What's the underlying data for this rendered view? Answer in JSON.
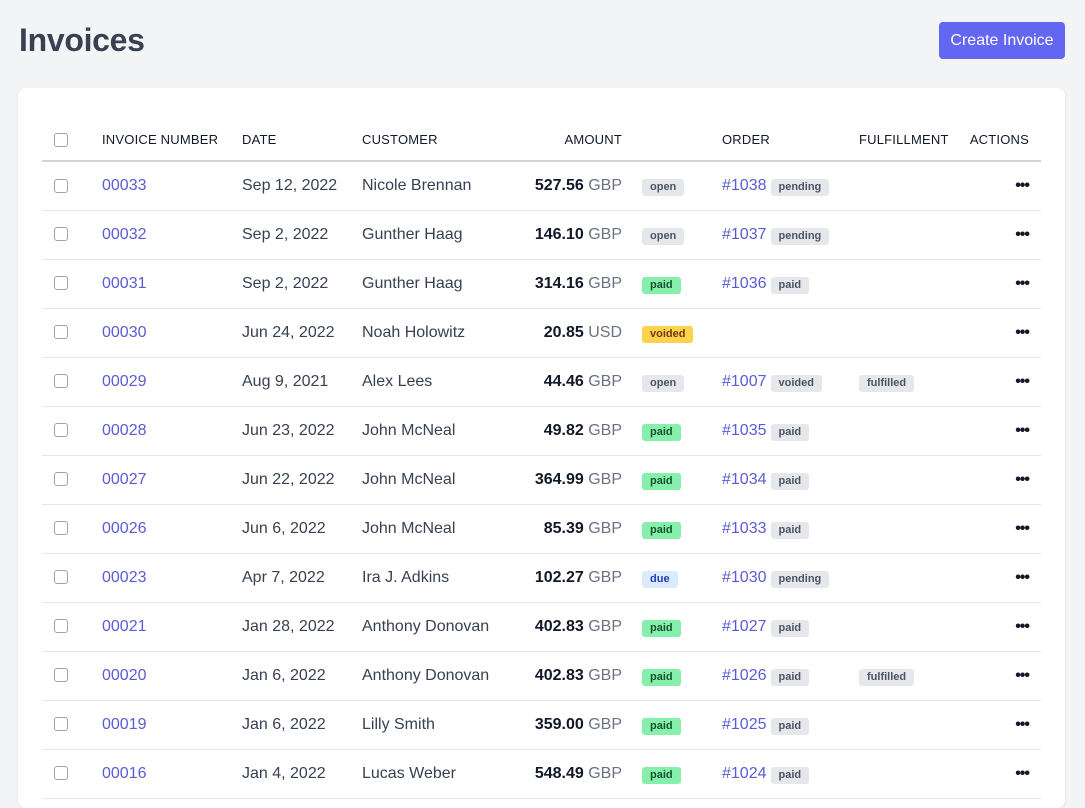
{
  "header": {
    "title": "Invoices",
    "create_button": "Create Invoice"
  },
  "colors": {
    "accent": "#6366f1",
    "link": "#5b5bd6",
    "paid": "#86efac",
    "voided": "#fcd34d",
    "due": "#dbeafe",
    "neutral_badge": "#e5e7eb"
  },
  "table": {
    "columns": [
      "Invoice Number",
      "Date",
      "Customer",
      "Amount",
      "",
      "Order",
      "Fulfillment",
      "Actions"
    ],
    "actions_icon": "more-horizontal-icon",
    "rows": [
      {
        "number": "00033",
        "date": "Sep 12, 2022",
        "customer": "Nicole Brennan",
        "amount": "527.56",
        "currency": "GBP",
        "status": "open",
        "order": "#1038",
        "order_status": "pending",
        "fulfillment": ""
      },
      {
        "number": "00032",
        "date": "Sep 2, 2022",
        "customer": "Gunther Haag",
        "amount": "146.10",
        "currency": "GBP",
        "status": "open",
        "order": "#1037",
        "order_status": "pending",
        "fulfillment": ""
      },
      {
        "number": "00031",
        "date": "Sep 2, 2022",
        "customer": "Gunther Haag",
        "amount": "314.16",
        "currency": "GBP",
        "status": "paid",
        "order": "#1036",
        "order_status": "paid",
        "fulfillment": ""
      },
      {
        "number": "00030",
        "date": "Jun 24, 2022",
        "customer": "Noah Holowitz",
        "amount": "20.85",
        "currency": "USD",
        "status": "voided",
        "order": "",
        "order_status": "",
        "fulfillment": ""
      },
      {
        "number": "00029",
        "date": "Aug 9, 2021",
        "customer": "Alex Lees",
        "amount": "44.46",
        "currency": "GBP",
        "status": "open",
        "order": "#1007",
        "order_status": "voided",
        "fulfillment": "fulfilled"
      },
      {
        "number": "00028",
        "date": "Jun 23, 2022",
        "customer": "John McNeal",
        "amount": "49.82",
        "currency": "GBP",
        "status": "paid",
        "order": "#1035",
        "order_status": "paid",
        "fulfillment": ""
      },
      {
        "number": "00027",
        "date": "Jun 22, 2022",
        "customer": "John McNeal",
        "amount": "364.99",
        "currency": "GBP",
        "status": "paid",
        "order": "#1034",
        "order_status": "paid",
        "fulfillment": ""
      },
      {
        "number": "00026",
        "date": "Jun 6, 2022",
        "customer": "John McNeal",
        "amount": "85.39",
        "currency": "GBP",
        "status": "paid",
        "order": "#1033",
        "order_status": "paid",
        "fulfillment": ""
      },
      {
        "number": "00023",
        "date": "Apr 7, 2022",
        "customer": "Ira J. Adkins",
        "amount": "102.27",
        "currency": "GBP",
        "status": "due",
        "order": "#1030",
        "order_status": "pending",
        "fulfillment": ""
      },
      {
        "number": "00021",
        "date": "Jan 28, 2022",
        "customer": "Anthony Donovan",
        "amount": "402.83",
        "currency": "GBP",
        "status": "paid",
        "order": "#1027",
        "order_status": "paid",
        "fulfillment": ""
      },
      {
        "number": "00020",
        "date": "Jan 6, 2022",
        "customer": "Anthony Donovan",
        "amount": "402.83",
        "currency": "GBP",
        "status": "paid",
        "order": "#1026",
        "order_status": "paid",
        "fulfillment": "fulfilled"
      },
      {
        "number": "00019",
        "date": "Jan 6, 2022",
        "customer": "Lilly Smith",
        "amount": "359.00",
        "currency": "GBP",
        "status": "paid",
        "order": "#1025",
        "order_status": "paid",
        "fulfillment": ""
      },
      {
        "number": "00016",
        "date": "Jan 4, 2022",
        "customer": "Lucas Weber",
        "amount": "548.49",
        "currency": "GBP",
        "status": "paid",
        "order": "#1024",
        "order_status": "paid",
        "fulfillment": ""
      }
    ]
  }
}
